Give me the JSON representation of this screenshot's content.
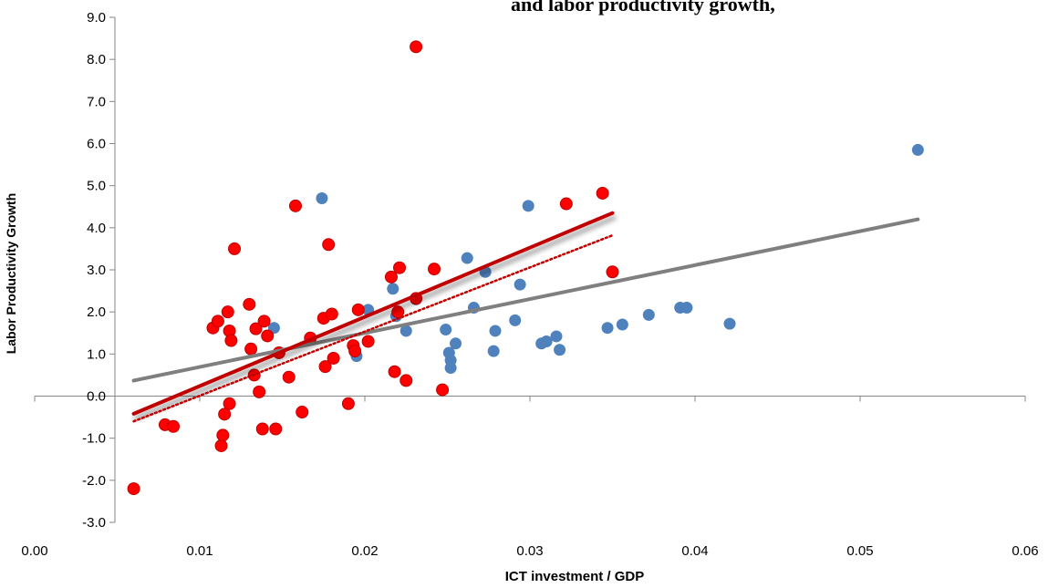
{
  "chart_data": {
    "type": "scatter",
    "title": "and labor productivity growth,",
    "xlabel": "ICT investment / GDP",
    "ylabel": "Labor Productivity Growth",
    "xlim": [
      0.0,
      0.06
    ],
    "ylim": [
      -3.0,
      9.0
    ],
    "x_ticks": [
      "0.00",
      "0.01",
      "0.02",
      "0.03",
      "0.04",
      "0.05",
      "0.06"
    ],
    "y_ticks": [
      "-3.0",
      "-2.0",
      "-1.0",
      "0.0",
      "1.0",
      "2.0",
      "3.0",
      "4.0",
      "5.0",
      "6.0",
      "7.0",
      "8.0",
      "9.0"
    ],
    "grid": false,
    "series": [
      {
        "color": "#4f81bd",
        "points": [
          [
            0.0145,
            1.62
          ],
          [
            0.0174,
            4.7
          ],
          [
            0.0195,
            0.95
          ],
          [
            0.0202,
            2.05
          ],
          [
            0.0217,
            2.55
          ],
          [
            0.0219,
            1.9
          ],
          [
            0.0225,
            1.55
          ],
          [
            0.0231,
            2.3
          ],
          [
            0.0249,
            1.58
          ],
          [
            0.0251,
            1.03
          ],
          [
            0.0252,
            0.85
          ],
          [
            0.0252,
            0.67
          ],
          [
            0.0255,
            1.25
          ],
          [
            0.0262,
            3.28
          ],
          [
            0.0266,
            2.1
          ],
          [
            0.0273,
            2.95
          ],
          [
            0.0278,
            1.07
          ],
          [
            0.0279,
            1.55
          ],
          [
            0.0291,
            1.8
          ],
          [
            0.0294,
            2.65
          ],
          [
            0.0299,
            4.52
          ],
          [
            0.0307,
            1.25
          ],
          [
            0.031,
            1.3
          ],
          [
            0.0316,
            1.42
          ],
          [
            0.0318,
            1.1
          ],
          [
            0.0347,
            1.62
          ],
          [
            0.0356,
            1.7
          ],
          [
            0.0372,
            1.93
          ],
          [
            0.0391,
            2.1
          ],
          [
            0.0395,
            2.1
          ],
          [
            0.0421,
            1.72
          ],
          [
            0.0535,
            5.85
          ]
        ]
      },
      {
        "color": "#ff0000",
        "points": [
          [
            0.006,
            -2.2
          ],
          [
            0.0079,
            -0.68
          ],
          [
            0.0084,
            -0.72
          ],
          [
            0.0108,
            1.62
          ],
          [
            0.0111,
            1.78
          ],
          [
            0.0113,
            -1.18
          ],
          [
            0.0114,
            -0.93
          ],
          [
            0.0115,
            -0.43
          ],
          [
            0.0117,
            2.0
          ],
          [
            0.0118,
            1.55
          ],
          [
            0.0118,
            -0.18
          ],
          [
            0.0119,
            1.32
          ],
          [
            0.0121,
            3.5
          ],
          [
            0.013,
            2.18
          ],
          [
            0.0131,
            1.12
          ],
          [
            0.0133,
            0.5
          ],
          [
            0.0134,
            1.6
          ],
          [
            0.0136,
            0.1
          ],
          [
            0.0138,
            -0.78
          ],
          [
            0.0139,
            1.78
          ],
          [
            0.0141,
            1.43
          ],
          [
            0.0146,
            -0.78
          ],
          [
            0.0148,
            1.03
          ],
          [
            0.0154,
            0.45
          ],
          [
            0.0158,
            4.52
          ],
          [
            0.0162,
            -0.38
          ],
          [
            0.0167,
            1.38
          ],
          [
            0.0175,
            1.85
          ],
          [
            0.0176,
            0.7
          ],
          [
            0.0178,
            3.6
          ],
          [
            0.018,
            1.95
          ],
          [
            0.0181,
            0.9
          ],
          [
            0.019,
            -0.18
          ],
          [
            0.0193,
            1.2
          ],
          [
            0.0194,
            1.07
          ],
          [
            0.0196,
            2.05
          ],
          [
            0.0202,
            1.3
          ],
          [
            0.0216,
            2.83
          ],
          [
            0.0218,
            0.58
          ],
          [
            0.022,
            2.0
          ],
          [
            0.0221,
            3.05
          ],
          [
            0.0225,
            0.37
          ],
          [
            0.0231,
            2.32
          ],
          [
            0.0231,
            8.3
          ],
          [
            0.0242,
            3.02
          ],
          [
            0.0247,
            0.15
          ],
          [
            0.0322,
            4.57
          ],
          [
            0.0344,
            4.82
          ],
          [
            0.035,
            2.95
          ]
        ]
      }
    ],
    "trendlines": [
      {
        "color": "#7f7f7f",
        "style": "solid",
        "x": [
          0.006,
          0.0535
        ],
        "y": [
          0.37,
          4.2
        ]
      },
      {
        "color": "#c00000",
        "style": "solid",
        "x": [
          0.006,
          0.035
        ],
        "y": [
          -0.42,
          4.35
        ]
      },
      {
        "color": "#c00000",
        "style": "dotted",
        "x": [
          0.006,
          0.035
        ],
        "y": [
          -0.6,
          3.82
        ]
      }
    ]
  }
}
